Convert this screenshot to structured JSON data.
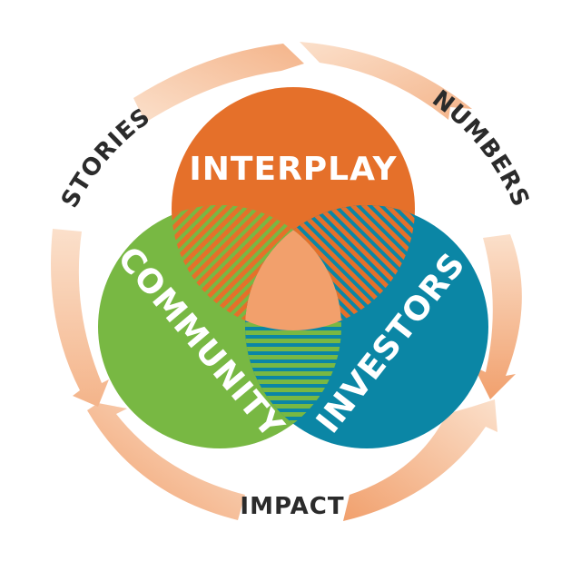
{
  "venn": {
    "top_label": "INTERPLAY",
    "left_label": "COMMUNITY",
    "right_label": "INVESTORS",
    "colors": {
      "top": "#e5702a",
      "left": "#78b843",
      "right": "#0b86a5",
      "center": "#f2a06c"
    }
  },
  "cycle": {
    "labels": {
      "stories": "STORIES",
      "numbers": "NUMBERS",
      "impact": "IMPACT"
    },
    "arrow_color_light": "#fbe0cb",
    "arrow_color_dark": "#f1a06d"
  }
}
